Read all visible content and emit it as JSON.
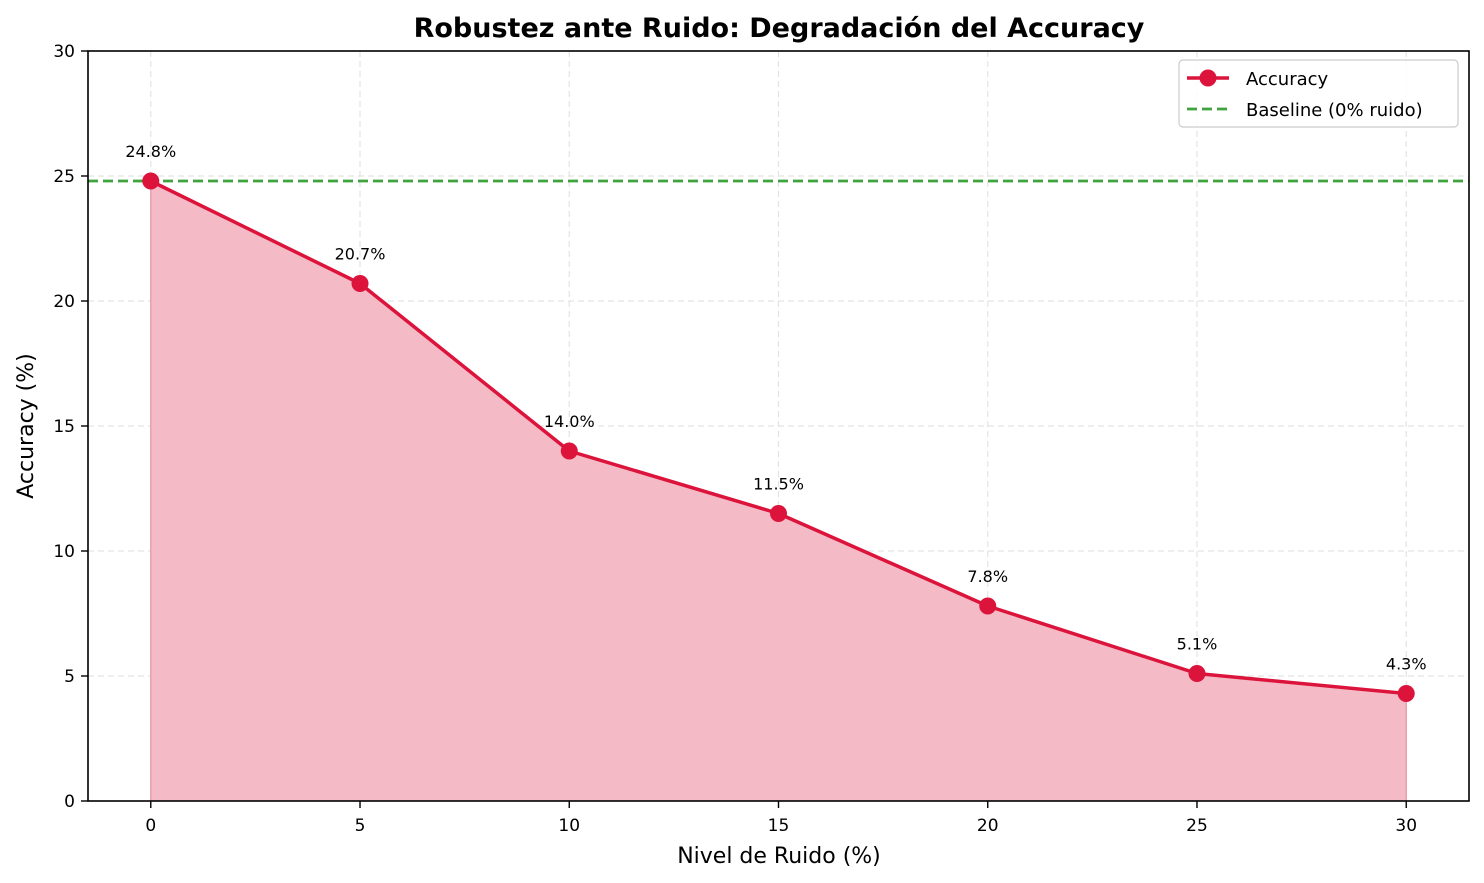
{
  "chart_data": {
    "type": "line",
    "title": "Robustez ante Ruido: Degradación del Accuracy",
    "xlabel": "Nivel de Ruido (%)",
    "ylabel": "Accuracy (%)",
    "x": [
      0,
      5,
      10,
      15,
      20,
      25,
      30
    ],
    "series": [
      {
        "name": "Accuracy",
        "values": [
          24.8,
          20.7,
          14.0,
          11.5,
          7.8,
          5.1,
          4.3
        ],
        "color": "#dc143c",
        "fill_color": "#f3b6c3",
        "marker": "circle",
        "labels": [
          "24.8%",
          "20.7%",
          "14.0%",
          "11.5%",
          "7.8%",
          "5.1%",
          "4.3%"
        ]
      }
    ],
    "baseline": {
      "name": "Baseline (0% ruido)",
      "value": 24.8,
      "color": "#3fa33f",
      "style": "dashed"
    },
    "xlim": [
      -1.5,
      31.5
    ],
    "ylim": [
      0,
      30
    ],
    "xticks": [
      0,
      5,
      10,
      15,
      20,
      25,
      30
    ],
    "yticks": [
      0,
      5,
      10,
      15,
      20,
      25,
      30
    ],
    "grid": true,
    "legend_position": "top-right"
  }
}
